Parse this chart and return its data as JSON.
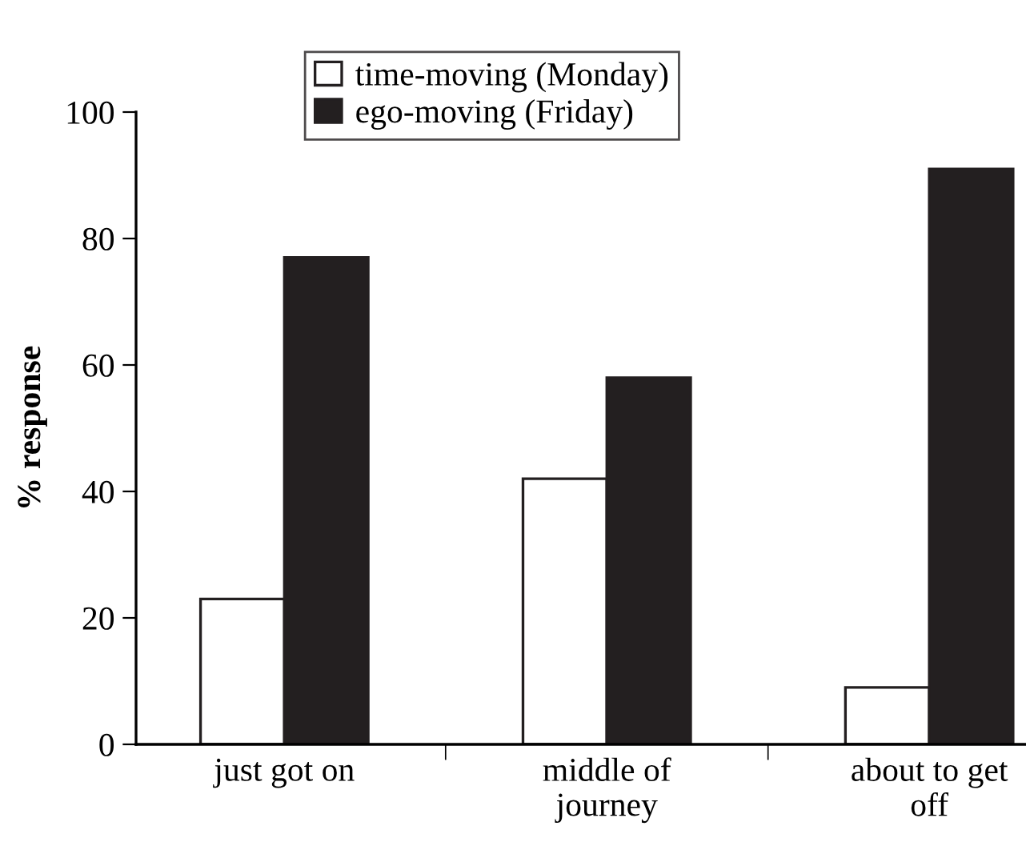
{
  "chart_data": {
    "type": "bar",
    "ylabel": "% response",
    "categories": [
      "just got on",
      "middle of\njourney",
      "about to get\noff"
    ],
    "series": [
      {
        "name": "time-moving (Monday)",
        "color": "#ffffff",
        "values": [
          23,
          42,
          9
        ]
      },
      {
        "name": "ego-moving (Friday)",
        "color": "#231f20",
        "values": [
          77,
          58,
          91
        ]
      }
    ],
    "ylim": [
      0,
      100
    ],
    "yticks": [
      0,
      20,
      40,
      60,
      80,
      100
    ],
    "grid": false,
    "legend": "top"
  }
}
